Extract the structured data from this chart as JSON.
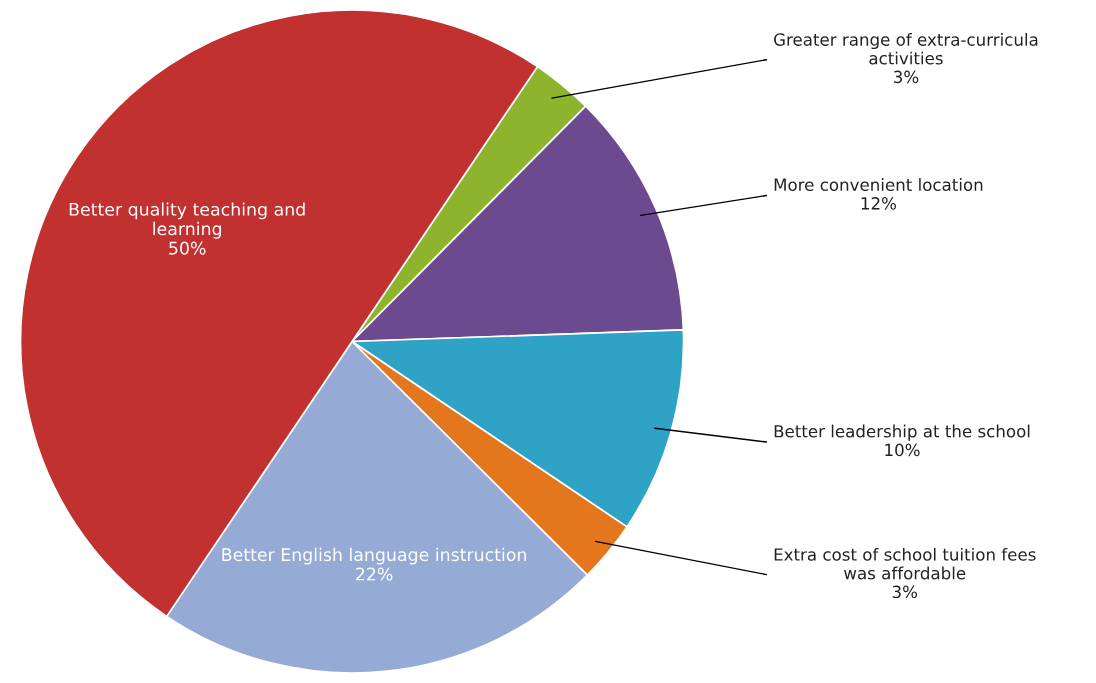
{
  "chart_data": {
    "type": "pie",
    "categories": [
      "Greater range of extra-curricula\nactivities",
      "More convenient location",
      "Better leadership at the school",
      "Extra cost of school tuition fees\nwas affordable",
      "Better English language instruction",
      "Better quality teaching and\nlearning"
    ],
    "values": [
      3,
      12,
      10,
      3,
      22,
      50
    ],
    "colors": [
      "#8db42c",
      "#6b4a8f",
      "#2fa3c6",
      "#e4761e",
      "#95abd6",
      "#c0312f"
    ],
    "value_labels": [
      "3%",
      "12%",
      "10%",
      "3%",
      "22%",
      "50%"
    ]
  }
}
